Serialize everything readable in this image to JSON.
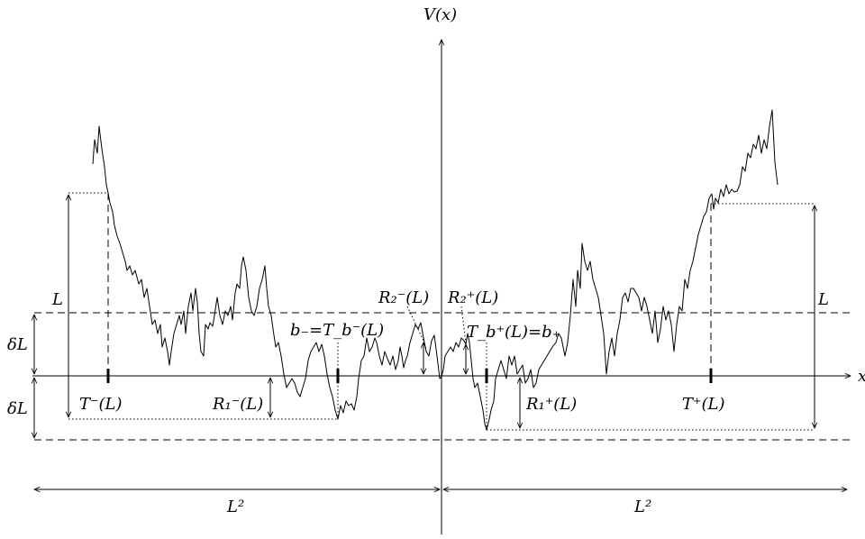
{
  "axes": {
    "y_label": "V(x)",
    "x_label": "x"
  },
  "labels": {
    "L_left": "L",
    "L_right": "L",
    "deltaL_upper": "δL",
    "deltaL_lower": "δL",
    "T_minus": "T⁻(L)",
    "T_plus": "T⁺(L)",
    "R1_minus": "R₁⁻(L)",
    "R1_plus": "R₁⁺(L)",
    "R2_minus": "R₂⁻(L)",
    "R2_plus": "R₂⁺(L)",
    "b_minus_eq": "b₋=T_b⁻(L)",
    "b_plus_eq": "T_b⁺(L)=b₊",
    "L2_left": "L²",
    "L2_right": "L²"
  },
  "colors": {
    "ink": "#000000",
    "background": "#ffffff"
  }
}
